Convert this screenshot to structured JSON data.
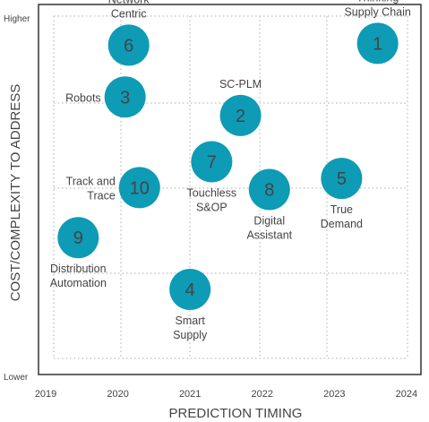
{
  "chart_data": {
    "type": "bubble-scatter",
    "title": "",
    "xlabel": "PREDICTION TIMING",
    "ylabel": "COST/COMPLEXITY TO ADDRESS",
    "y_tick_labels": {
      "high": "Higher",
      "low": "Lower"
    },
    "x_ticks": [
      "2019",
      "2020",
      "2021",
      "2022",
      "2023",
      "2024"
    ],
    "xlim": [
      2018.9,
      2024.2
    ],
    "ylim": [
      0,
      10
    ],
    "grid": true,
    "bubble_color": "#0e9bb5",
    "points": [
      {
        "id": "1",
        "x": 2023.6,
        "y": 8.95,
        "label": [
          "Thinking",
          "Supply Chain"
        ],
        "label_pos": "above"
      },
      {
        "id": "2",
        "x": 2021.7,
        "y": 7.0,
        "label": [
          "SC-PLM"
        ],
        "label_pos": "above"
      },
      {
        "id": "3",
        "x": 2020.1,
        "y": 7.5,
        "label": [
          "Robots"
        ],
        "label_pos": "left"
      },
      {
        "id": "4",
        "x": 2021.0,
        "y": 2.3,
        "label": [
          "Smart",
          "Supply"
        ],
        "label_pos": "below"
      },
      {
        "id": "5",
        "x": 2023.1,
        "y": 5.3,
        "label": [
          "True",
          "Demand"
        ],
        "label_pos": "below"
      },
      {
        "id": "6",
        "x": 2020.15,
        "y": 8.9,
        "label": [
          "Network",
          "Centric"
        ],
        "label_pos": "above"
      },
      {
        "id": "7",
        "x": 2021.3,
        "y": 5.75,
        "label": [
          "Touchless",
          "S&OP"
        ],
        "label_pos": "below"
      },
      {
        "id": "8",
        "x": 2022.1,
        "y": 5.0,
        "label": [
          "Digital",
          "Assistant"
        ],
        "label_pos": "below"
      },
      {
        "id": "9",
        "x": 2019.45,
        "y": 3.7,
        "label": [
          "Distribution",
          "Automation"
        ],
        "label_pos": "below"
      },
      {
        "id": "10",
        "x": 2020.3,
        "y": 5.05,
        "label": [
          "Track and",
          "Trace"
        ],
        "label_pos": "left"
      }
    ]
  }
}
